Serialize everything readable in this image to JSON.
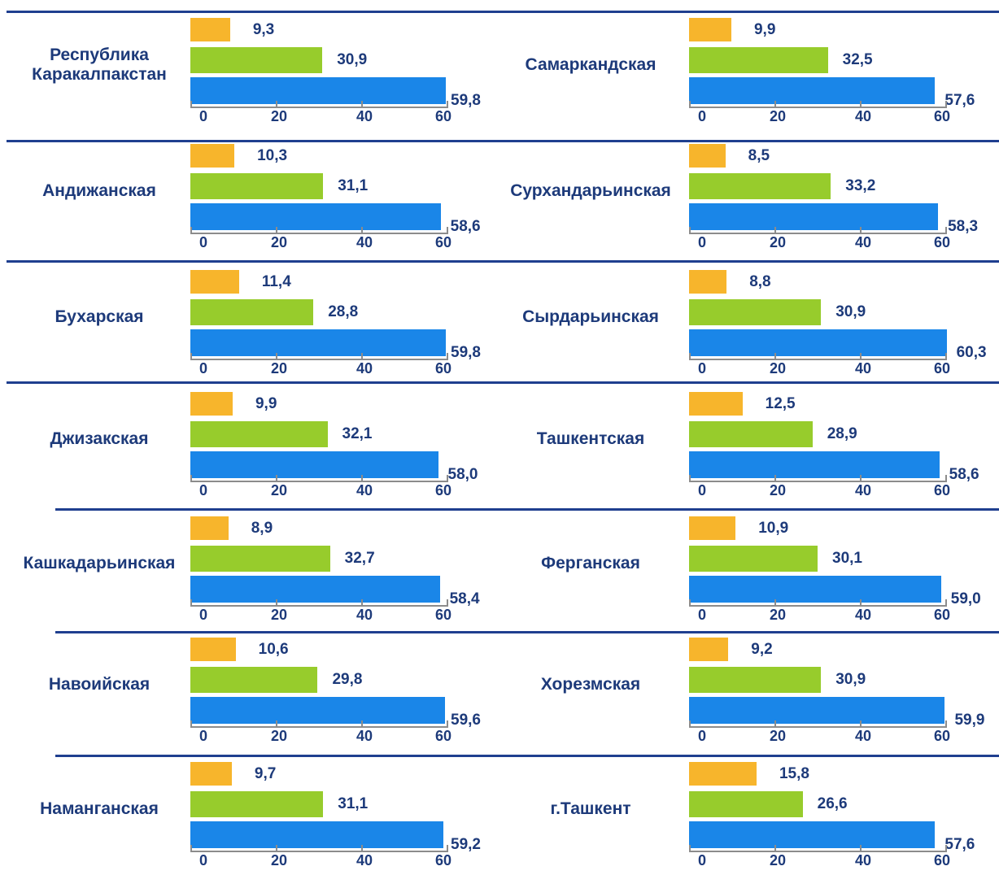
{
  "colors": {
    "seg1": "#f7b52c",
    "seg2": "#97cc2c",
    "seg3": "#1a86e8",
    "separator": "#1f3f8f",
    "text": "#1d3a7a"
  },
  "chart_data": [
    {
      "type": "bar",
      "orientation": "horizontal",
      "region": "Республика\nКаракалпакстан",
      "values": [
        9.3,
        30.9,
        59.8
      ],
      "labels": [
        "9,3",
        "30,9",
        "59,8"
      ],
      "xlim": [
        0,
        60
      ],
      "ticks": [
        "0",
        "20",
        "40",
        "60"
      ]
    },
    {
      "type": "bar",
      "orientation": "horizontal",
      "region": "Самаркандская",
      "values": [
        9.9,
        32.5,
        57.6
      ],
      "labels": [
        "9,9",
        "32,5",
        "57,6"
      ],
      "xlim": [
        0,
        60
      ],
      "ticks": [
        "0",
        "20",
        "40",
        "60"
      ]
    },
    {
      "type": "bar",
      "orientation": "horizontal",
      "region": "Андижанская",
      "values": [
        10.3,
        31.1,
        58.6
      ],
      "labels": [
        "10,3",
        "31,1",
        "58,6"
      ],
      "xlim": [
        0,
        60
      ],
      "ticks": [
        "0",
        "20",
        "40",
        "60"
      ]
    },
    {
      "type": "bar",
      "orientation": "horizontal",
      "region": "Сурхандарьинская",
      "values": [
        8.5,
        33.2,
        58.3
      ],
      "labels": [
        "8,5",
        "33,2",
        "58,3"
      ],
      "xlim": [
        0,
        60
      ],
      "ticks": [
        "0",
        "20",
        "40",
        "60"
      ]
    },
    {
      "type": "bar",
      "orientation": "horizontal",
      "region": "Бухарская",
      "values": [
        11.4,
        28.8,
        59.8
      ],
      "labels": [
        "11,4",
        "28,8",
        "59,8"
      ],
      "xlim": [
        0,
        60
      ],
      "ticks": [
        "0",
        "20",
        "40",
        "60"
      ]
    },
    {
      "type": "bar",
      "orientation": "horizontal",
      "region": "Сырдарьинская",
      "values": [
        8.8,
        30.9,
        60.3
      ],
      "labels": [
        "8,8",
        "30,9",
        "60,3"
      ],
      "xlim": [
        0,
        60
      ],
      "ticks": [
        "0",
        "20",
        "40",
        "60"
      ]
    },
    {
      "type": "bar",
      "orientation": "horizontal",
      "region": "Джизакская",
      "values": [
        9.9,
        32.1,
        58.0
      ],
      "labels": [
        "9,9",
        "32,1",
        "58,0"
      ],
      "xlim": [
        0,
        60
      ],
      "ticks": [
        "0",
        "20",
        "40",
        "60"
      ]
    },
    {
      "type": "bar",
      "orientation": "horizontal",
      "region": "Ташкентская",
      "values": [
        12.5,
        28.9,
        58.6
      ],
      "labels": [
        "12,5",
        "28,9",
        "58,6"
      ],
      "xlim": [
        0,
        60
      ],
      "ticks": [
        "0",
        "20",
        "40",
        "60"
      ]
    },
    {
      "type": "bar",
      "orientation": "horizontal",
      "region": "Кашкадарьинская",
      "values": [
        8.9,
        32.7,
        58.4
      ],
      "labels": [
        "8,9",
        "32,7",
        "58,4"
      ],
      "xlim": [
        0,
        60
      ],
      "ticks": [
        "0",
        "20",
        "40",
        "60"
      ]
    },
    {
      "type": "bar",
      "orientation": "horizontal",
      "region": "Ферганская",
      "values": [
        10.9,
        30.1,
        59.0
      ],
      "labels": [
        "10,9",
        "30,1",
        "59,0"
      ],
      "xlim": [
        0,
        60
      ],
      "ticks": [
        "0",
        "20",
        "40",
        "60"
      ]
    },
    {
      "type": "bar",
      "orientation": "horizontal",
      "region": "Навоийская",
      "values": [
        10.6,
        29.8,
        59.6
      ],
      "labels": [
        "10,6",
        "29,8",
        "59,6"
      ],
      "xlim": [
        0,
        60
      ],
      "ticks": [
        "0",
        "20",
        "40",
        "60"
      ]
    },
    {
      "type": "bar",
      "orientation": "horizontal",
      "region": "Хорезмская",
      "values": [
        9.2,
        30.9,
        59.9
      ],
      "labels": [
        "9,2",
        "30,9",
        "59,9"
      ],
      "xlim": [
        0,
        60
      ],
      "ticks": [
        "0",
        "20",
        "40",
        "60"
      ]
    },
    {
      "type": "bar",
      "orientation": "horizontal",
      "region": "Наманганская",
      "values": [
        9.7,
        31.1,
        59.2
      ],
      "labels": [
        "9,7",
        "31,1",
        "59,2"
      ],
      "xlim": [
        0,
        60
      ],
      "ticks": [
        "0",
        "20",
        "40",
        "60"
      ]
    },
    {
      "type": "bar",
      "orientation": "horizontal",
      "region": "г.Ташкент",
      "values": [
        15.8,
        26.6,
        57.6
      ],
      "labels": [
        "15,8",
        "26,6",
        "57,6"
      ],
      "xlim": [
        0,
        60
      ],
      "ticks": [
        "0",
        "20",
        "40",
        "60"
      ]
    }
  ]
}
